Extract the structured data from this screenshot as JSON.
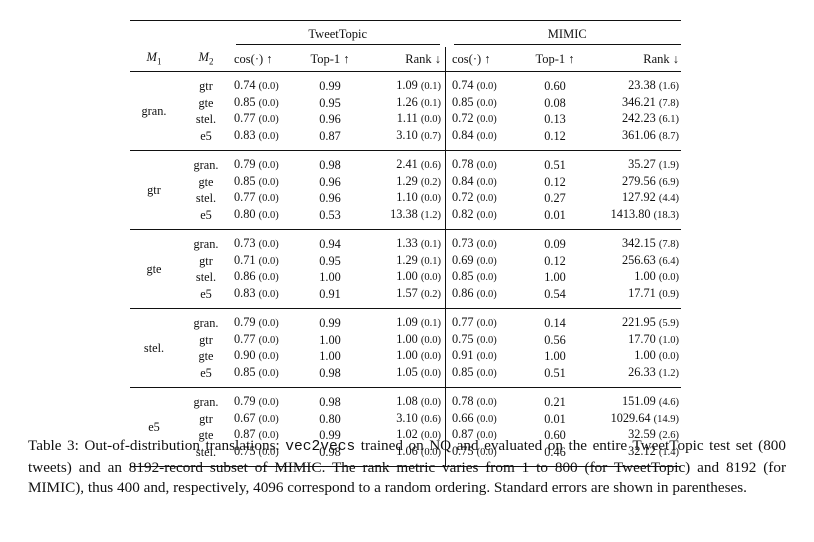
{
  "table": {
    "group_headers": {
      "left": "TweetTopic",
      "right": "MIMIC"
    },
    "col_headers": {
      "m1": "M",
      "m1_sub": "1",
      "m2": "M",
      "m2_sub": "2",
      "cos": "cos(·) ↑",
      "top1": "Top-1 ↑",
      "rank": "Rank ↓",
      "cos_b": "cos(·) ↑",
      "top1_b": "Top-1 ↑",
      "rank_b": "Rank ↓"
    },
    "blocks": [
      {
        "m1": "gran.",
        "rows": [
          {
            "m2": "gtr",
            "cos": "0.74",
            "cos_se": "(0.0)",
            "top1": "0.99",
            "rank": "1.09",
            "rank_se": "(0.1)",
            "mcos": "0.74",
            "mcos_se": "(0.0)",
            "mtop1": "0.60",
            "mrank": "23.38",
            "mrank_se": "(1.6)"
          },
          {
            "m2": "gte",
            "cos": "0.85",
            "cos_se": "(0.0)",
            "top1": "0.95",
            "rank": "1.26",
            "rank_se": "(0.1)",
            "mcos": "0.85",
            "mcos_se": "(0.0)",
            "mtop1": "0.08",
            "mrank": "346.21",
            "mrank_se": "(7.8)"
          },
          {
            "m2": "stel.",
            "cos": "0.77",
            "cos_se": "(0.0)",
            "top1": "0.96",
            "rank": "1.11",
            "rank_se": "(0.0)",
            "mcos": "0.72",
            "mcos_se": "(0.0)",
            "mtop1": "0.13",
            "mrank": "242.23",
            "mrank_se": "(6.1)"
          },
          {
            "m2": "e5",
            "cos": "0.83",
            "cos_se": "(0.0)",
            "top1": "0.87",
            "rank": "3.10",
            "rank_se": "(0.7)",
            "mcos": "0.84",
            "mcos_se": "(0.0)",
            "mtop1": "0.12",
            "mrank": "361.06",
            "mrank_se": "(8.7)"
          }
        ]
      },
      {
        "m1": "gtr",
        "rows": [
          {
            "m2": "gran.",
            "cos": "0.79",
            "cos_se": "(0.0)",
            "top1": "0.98",
            "rank": "2.41",
            "rank_se": "(0.6)",
            "mcos": "0.78",
            "mcos_se": "(0.0)",
            "mtop1": "0.51",
            "mrank": "35.27",
            "mrank_se": "(1.9)"
          },
          {
            "m2": "gte",
            "cos": "0.85",
            "cos_se": "(0.0)",
            "top1": "0.96",
            "rank": "1.29",
            "rank_se": "(0.2)",
            "mcos": "0.84",
            "mcos_se": "(0.0)",
            "mtop1": "0.12",
            "mrank": "279.56",
            "mrank_se": "(6.9)"
          },
          {
            "m2": "stel.",
            "cos": "0.77",
            "cos_se": "(0.0)",
            "top1": "0.96",
            "rank": "1.10",
            "rank_se": "(0.0)",
            "mcos": "0.72",
            "mcos_se": "(0.0)",
            "mtop1": "0.27",
            "mrank": "127.92",
            "mrank_se": "(4.4)"
          },
          {
            "m2": "e5",
            "cos": "0.80",
            "cos_se": "(0.0)",
            "top1": "0.53",
            "rank": "13.38",
            "rank_se": "(1.2)",
            "mcos": "0.82",
            "mcos_se": "(0.0)",
            "mtop1": "0.01",
            "mrank": "1413.80",
            "mrank_se": "(18.3)"
          }
        ]
      },
      {
        "m1": "gte",
        "rows": [
          {
            "m2": "gran.",
            "cos": "0.73",
            "cos_se": "(0.0)",
            "top1": "0.94",
            "rank": "1.33",
            "rank_se": "(0.1)",
            "mcos": "0.73",
            "mcos_se": "(0.0)",
            "mtop1": "0.09",
            "mrank": "342.15",
            "mrank_se": "(7.8)"
          },
          {
            "m2": "gtr",
            "cos": "0.71",
            "cos_se": "(0.0)",
            "top1": "0.95",
            "rank": "1.29",
            "rank_se": "(0.1)",
            "mcos": "0.69",
            "mcos_se": "(0.0)",
            "mtop1": "0.12",
            "mrank": "256.63",
            "mrank_se": "(6.4)"
          },
          {
            "m2": "stel.",
            "cos": "0.86",
            "cos_se": "(0.0)",
            "top1": "1.00",
            "rank": "1.00",
            "rank_se": "(0.0)",
            "mcos": "0.85",
            "mcos_se": "(0.0)",
            "mtop1": "1.00",
            "mrank": "1.00",
            "mrank_se": "(0.0)"
          },
          {
            "m2": "e5",
            "cos": "0.83",
            "cos_se": "(0.0)",
            "top1": "0.91",
            "rank": "1.57",
            "rank_se": "(0.2)",
            "mcos": "0.86",
            "mcos_se": "(0.0)",
            "mtop1": "0.54",
            "mrank": "17.71",
            "mrank_se": "(0.9)"
          }
        ]
      },
      {
        "m1": "stel.",
        "rows": [
          {
            "m2": "gran.",
            "cos": "0.79",
            "cos_se": "(0.0)",
            "top1": "0.99",
            "rank": "1.09",
            "rank_se": "(0.1)",
            "mcos": "0.77",
            "mcos_se": "(0.0)",
            "mtop1": "0.14",
            "mrank": "221.95",
            "mrank_se": "(5.9)"
          },
          {
            "m2": "gtr",
            "cos": "0.77",
            "cos_se": "(0.0)",
            "top1": "1.00",
            "rank": "1.00",
            "rank_se": "(0.0)",
            "mcos": "0.75",
            "mcos_se": "(0.0)",
            "mtop1": "0.56",
            "mrank": "17.70",
            "mrank_se": "(1.0)"
          },
          {
            "m2": "gte",
            "cos": "0.90",
            "cos_se": "(0.0)",
            "top1": "1.00",
            "rank": "1.00",
            "rank_se": "(0.0)",
            "mcos": "0.91",
            "mcos_se": "(0.0)",
            "mtop1": "1.00",
            "mrank": "1.00",
            "mrank_se": "(0.0)"
          },
          {
            "m2": "e5",
            "cos": "0.85",
            "cos_se": "(0.0)",
            "top1": "0.98",
            "rank": "1.05",
            "rank_se": "(0.0)",
            "mcos": "0.85",
            "mcos_se": "(0.0)",
            "mtop1": "0.51",
            "mrank": "26.33",
            "mrank_se": "(1.2)"
          }
        ]
      },
      {
        "m1": "e5",
        "rows": [
          {
            "m2": "gran.",
            "cos": "0.79",
            "cos_se": "(0.0)",
            "top1": "0.98",
            "rank": "1.08",
            "rank_se": "(0.0)",
            "mcos": "0.78",
            "mcos_se": "(0.0)",
            "mtop1": "0.21",
            "mrank": "151.09",
            "mrank_se": "(4.6)"
          },
          {
            "m2": "gtr",
            "cos": "0.67",
            "cos_se": "(0.0)",
            "top1": "0.80",
            "rank": "3.10",
            "rank_se": "(0.6)",
            "mcos": "0.66",
            "mcos_se": "(0.0)",
            "mtop1": "0.01",
            "mrank": "1029.64",
            "mrank_se": "(14.9)"
          },
          {
            "m2": "gte",
            "cos": "0.87",
            "cos_se": "(0.0)",
            "top1": "0.99",
            "rank": "1.02",
            "rank_se": "(0.0)",
            "mcos": "0.87",
            "mcos_se": "(0.0)",
            "mtop1": "0.60",
            "mrank": "32.59",
            "mrank_se": "(2.6)"
          },
          {
            "m2": "stel.",
            "cos": "0.75",
            "cos_se": "(0.0)",
            "top1": "0.98",
            "rank": "1.06",
            "rank_se": "(0.0)",
            "mcos": "0.75",
            "mcos_se": "(0.0)",
            "mtop1": "0.46",
            "mrank": "32.12",
            "mrank_se": "(1.4)"
          }
        ]
      }
    ]
  },
  "caption": {
    "part1": "Table 3: Out-of-distribution translations: ",
    "code": "vec2vecs",
    "part2": " trained on NQ and evaluated on the entire TweetTopic test set (800 tweets) and an 8192-record subset of MIMIC. The rank metric varies from 1 to 800 (for TweetTopic) and 8192 (for MIMIC), thus 400 and, respectively, 4096 correspond to a random ordering. Standard errors are shown in parentheses."
  }
}
